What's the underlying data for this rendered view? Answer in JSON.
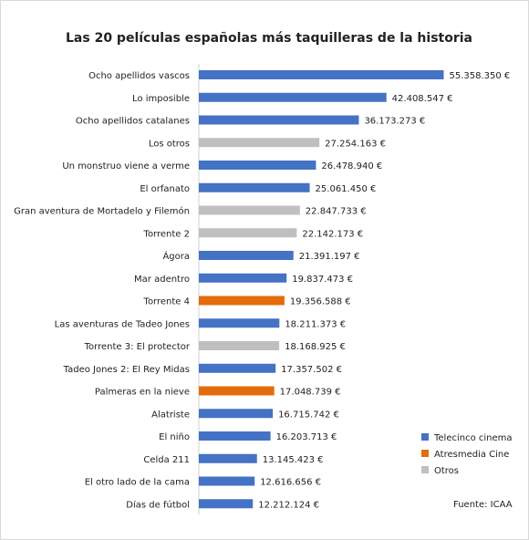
{
  "chart_data": {
    "type": "bar",
    "orientation": "horizontal",
    "title": "Las 20 películas españolas más taquilleras de la historia",
    "categories": [
      "Ocho apellidos vascos",
      "Lo imposible",
      "Ocho apellidos catalanes",
      "Los otros",
      "Un monstruo viene a verme",
      "El orfanato",
      "Gran aventura de Mortadelo y Filemón",
      "Torrente 2",
      "Ágora",
      "Mar adentro",
      "Torrente 4",
      "Las aventuras de Tadeo Jones",
      "Torrente 3: El protector",
      "Tadeo Jones 2: El Rey Midas",
      "Palmeras en la nieve",
      "Alatriste",
      "El niño",
      "Celda 211",
      "El otro lado de la cama",
      "Días de fútbol"
    ],
    "values": [
      55358350,
      42408547,
      36173273,
      27254163,
      26478940,
      25061450,
      22847733,
      22142173,
      21391197,
      19837473,
      19356588,
      18211373,
      18168925,
      17357502,
      17048739,
      16715742,
      16203713,
      13145423,
      12616656,
      12212124
    ],
    "value_labels": [
      "55.358.350 €",
      "42.408.547 €",
      "36.173.273 €",
      "27.254.163 €",
      "26.478.940 €",
      "25.061.450 €",
      "22.847.733 €",
      "22.142.173 €",
      "21.391.197 €",
      "19.837.473 €",
      "19.356.588 €",
      "18.211.373 €",
      "18.168.925 €",
      "17.357.502 €",
      "17.048.739 €",
      "16.715.742 €",
      "16.203.713 €",
      "13.145.423 €",
      "12.616.656 €",
      "12.212.124 €"
    ],
    "colors": [
      "#4472c4",
      "#4472c4",
      "#4472c4",
      "#bfbfbf",
      "#4472c4",
      "#4472c4",
      "#bfbfbf",
      "#bfbfbf",
      "#4472c4",
      "#4472c4",
      "#e46c0a",
      "#4472c4",
      "#bfbfbf",
      "#4472c4",
      "#e46c0a",
      "#4472c4",
      "#4472c4",
      "#4472c4",
      "#4472c4",
      "#4472c4"
    ],
    "xlim": [
      0,
      60000000
    ],
    "legend": [
      {
        "name": "Telecinco cinema",
        "color": "#4472c4"
      },
      {
        "name": "Atresmedia Cine",
        "color": "#e46c0a"
      },
      {
        "name": "Otros",
        "color": "#bfbfbf"
      }
    ],
    "source": "Fuente: ICAA"
  }
}
